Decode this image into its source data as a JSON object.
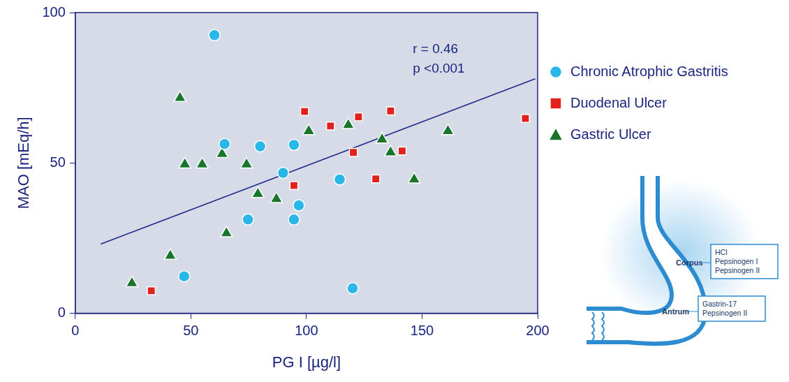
{
  "chart_data": {
    "type": "scatter",
    "x_label": "PG I [µg/l]",
    "y_label": "MAO [mEq/h]",
    "xlim": [
      0,
      200
    ],
    "xticks": [
      0,
      50,
      100,
      150,
      200
    ],
    "ylim": [
      0,
      100
    ],
    "yticks": [
      0,
      50,
      100
    ],
    "grid": false,
    "legend": "right",
    "annotations": [
      "r = 0.46",
      "p <0.001"
    ],
    "series": [
      {
        "name": "Chronic Atrophic Gastritis",
        "color": "#29b6e8",
        "marker": "circle",
        "x": [
          60.2,
          64.6,
          80,
          94.6,
          89.9,
          114.4,
          96.7,
          74.7,
          94.6,
          47.1,
          120
        ],
        "values": [
          92.5,
          56.3,
          55.5,
          56,
          46.7,
          44.5,
          35.9,
          31.2,
          31.2,
          12.3,
          8.3
        ]
      },
      {
        "name": "Duodenal Ulcer",
        "color": "#e3211c",
        "marker": "square",
        "x": [
          99.2,
          110.4,
          122.5,
          136.4,
          194.7,
          120.3,
          141.4,
          94.6,
          130,
          32.9
        ],
        "values": [
          67.1,
          62.3,
          65.3,
          67.3,
          64.8,
          53.5,
          54,
          42.5,
          44.7,
          7.5
        ]
      },
      {
        "name": "Gastric Ulcer",
        "color": "#17762b",
        "marker": "triangle",
        "x": [
          45.3,
          101,
          118.1,
          132.7,
          161.2,
          136.4,
          146.6,
          47.4,
          54.9,
          63.5,
          74.1,
          79,
          87,
          65.4,
          41.1,
          24.5
        ],
        "values": [
          71.6,
          60.6,
          62.6,
          57.8,
          60.6,
          53.5,
          44.5,
          49.5,
          49.5,
          53,
          49.5,
          39.7,
          38,
          26.6,
          19.1,
          10
        ]
      },
      {
        "type": "line",
        "color": "#1f2a8a",
        "x": [
          11,
          199
        ],
        "values": [
          23,
          78
        ]
      }
    ]
  },
  "diagram": {
    "regions": [
      {
        "label": "Corpus",
        "box": [
          "HCl",
          "Pepsinogen I",
          "Pepsinogen II"
        ]
      },
      {
        "label": "Antrum",
        "box": [
          "Gastrin-17",
          "Pepsinogen II"
        ]
      }
    ]
  }
}
